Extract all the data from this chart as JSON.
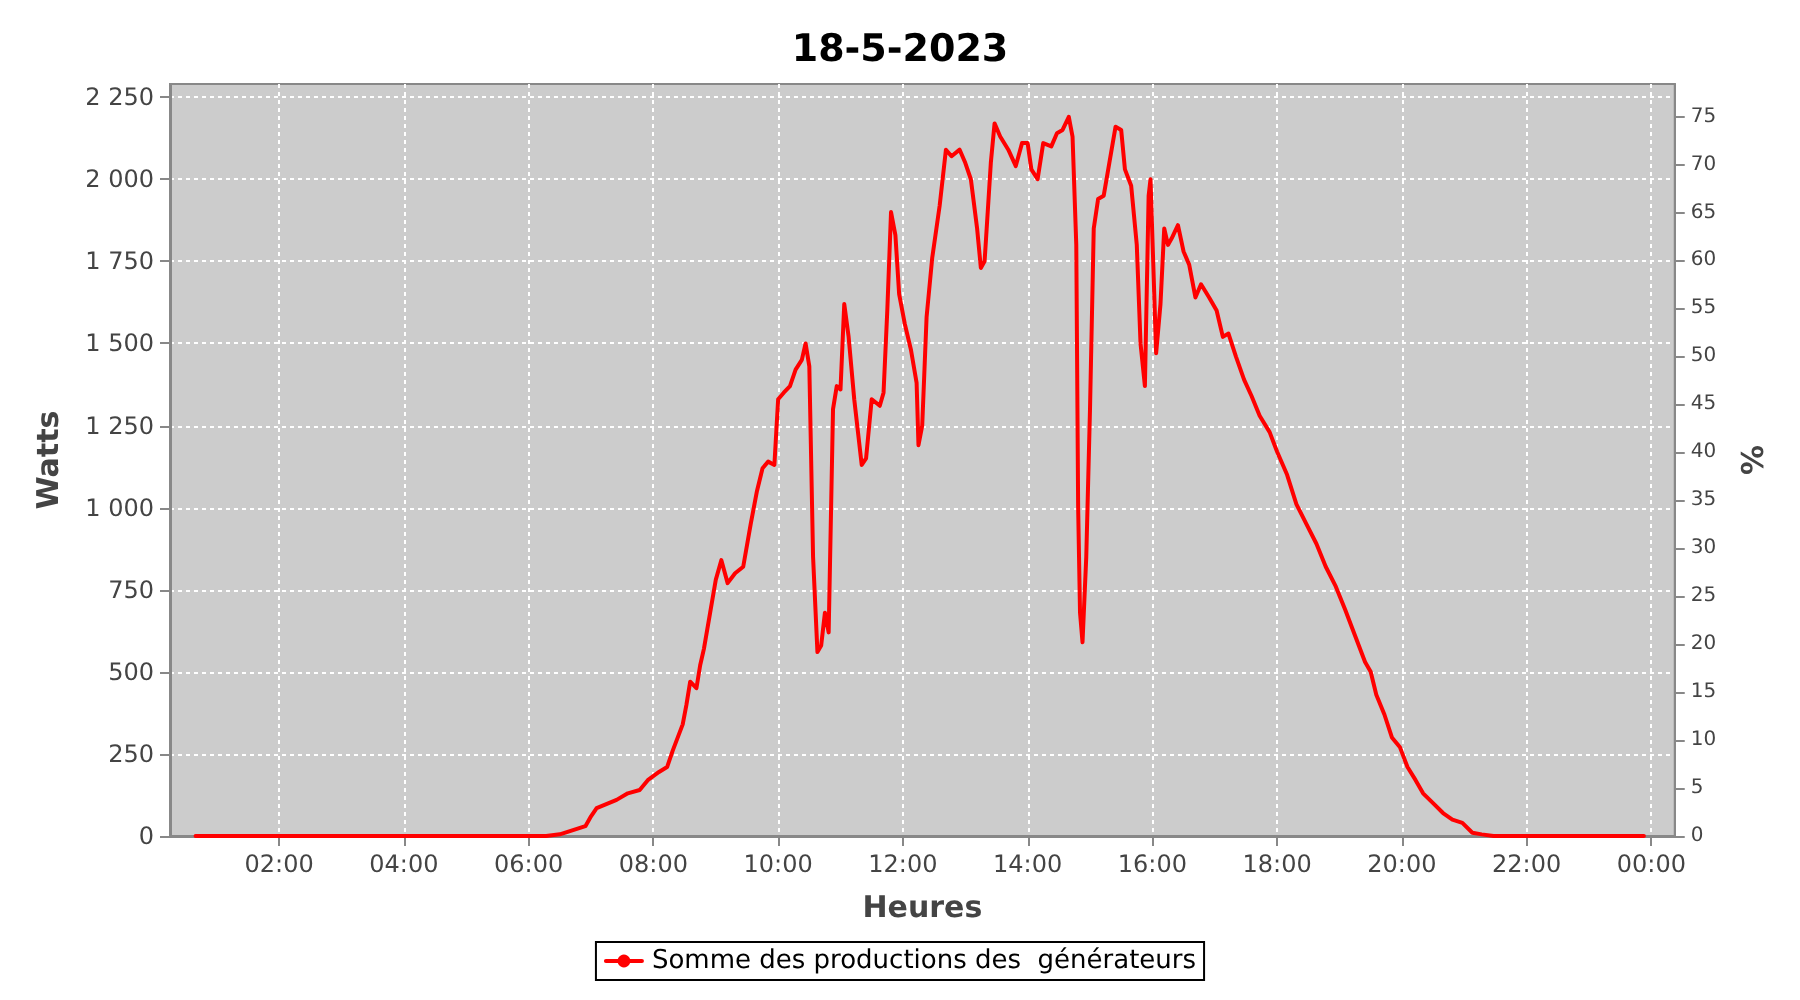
{
  "chart_data": {
    "type": "line",
    "title": "18-5-2023",
    "xlabel": "Heures",
    "ylabel": "Watts",
    "y2label": "%",
    "xlim": [
      0.25,
      24.375
    ],
    "xticks": [
      {
        "value": 2,
        "label": "02:00"
      },
      {
        "value": 4,
        "label": "04:00"
      },
      {
        "value": 6,
        "label": "06:00"
      },
      {
        "value": 8,
        "label": "08:00"
      },
      {
        "value": 10,
        "label": "10:00"
      },
      {
        "value": 12,
        "label": "12:00"
      },
      {
        "value": 14,
        "label": "14:00"
      },
      {
        "value": 16,
        "label": "16:00"
      },
      {
        "value": 18,
        "label": "18:00"
      },
      {
        "value": 20,
        "label": "20:00"
      },
      {
        "value": 22,
        "label": "22:00"
      },
      {
        "value": 24,
        "label": "00:00"
      }
    ],
    "ylim": [
      0,
      2290
    ],
    "yticks": [
      0,
      250,
      500,
      750,
      {
        "value": 1000,
        "label": "1 000"
      },
      {
        "value": 1250,
        "label": "1 250"
      },
      {
        "value": 1500,
        "label": "1 500"
      },
      {
        "value": 1750,
        "label": "1 750"
      },
      {
        "value": 2000,
        "label": "2 000"
      },
      {
        "value": 2250,
        "label": "2 250"
      }
    ],
    "y2lim": [
      0,
      78.4
    ],
    "y2ticks": [
      0,
      5,
      10,
      15,
      20,
      25,
      30,
      35,
      40,
      45,
      50,
      55,
      60,
      65,
      70,
      75
    ],
    "grid": true,
    "legend": "bottom",
    "marker": "none",
    "line_style": "solid",
    "series": [
      {
        "name": "Somme des productions des  générateurs",
        "color": "#ff0000",
        "x": [
          0.66,
          6.28,
          6.5,
          6.91,
          7.0,
          7.09,
          7.41,
          7.59,
          7.78,
          7.91,
          8.09,
          8.22,
          8.31,
          8.47,
          8.53,
          8.59,
          8.69,
          8.75,
          8.81,
          8.91,
          9.0,
          9.09,
          9.19,
          9.31,
          9.44,
          9.56,
          9.66,
          9.75,
          9.84,
          9.94,
          10.0,
          10.09,
          10.19,
          10.28,
          10.38,
          10.44,
          10.5,
          10.56,
          10.63,
          10.69,
          10.75,
          10.81,
          10.88,
          10.94,
          11.0,
          11.06,
          11.13,
          11.22,
          11.34,
          11.41,
          11.5,
          11.63,
          11.69,
          11.75,
          11.81,
          11.88,
          11.94,
          12.03,
          12.13,
          12.22,
          12.25,
          12.31,
          12.38,
          12.47,
          12.59,
          12.69,
          12.78,
          12.91,
          13.0,
          13.09,
          13.19,
          13.25,
          13.31,
          13.41,
          13.47,
          13.56,
          13.69,
          13.81,
          13.91,
          14.0,
          14.06,
          14.16,
          14.25,
          14.38,
          14.47,
          14.56,
          14.66,
          14.72,
          14.78,
          14.81,
          14.84,
          14.88,
          14.94,
          15.0,
          15.06,
          15.13,
          15.22,
          15.31,
          15.41,
          15.5,
          15.56,
          15.66,
          15.75,
          15.81,
          15.88,
          15.94,
          15.97,
          16.03,
          16.06,
          16.13,
          16.19,
          16.25,
          16.31,
          16.41,
          16.5,
          16.59,
          16.69,
          16.78,
          16.91,
          17.03,
          17.13,
          17.22,
          17.34,
          17.47,
          17.59,
          17.72,
          17.88,
          18.0,
          18.16,
          18.31,
          18.47,
          18.63,
          18.78,
          18.94,
          19.09,
          19.25,
          19.41,
          19.5,
          19.59,
          19.72,
          19.84,
          19.97,
          20.09,
          20.22,
          20.34,
          20.5,
          20.66,
          20.81,
          20.97,
          21.13,
          21.28,
          21.47,
          23.88
        ],
        "values": [
          0,
          0,
          5,
          30,
          60,
          85,
          110,
          130,
          140,
          170,
          195,
          210,
          260,
          340,
          400,
          470,
          450,
          520,
          570,
          680,
          780,
          840,
          770,
          800,
          820,
          950,
          1050,
          1120,
          1140,
          1130,
          1330,
          1350,
          1370,
          1420,
          1450,
          1500,
          1430,
          850,
          560,
          580,
          680,
          620,
          1300,
          1370,
          1360,
          1620,
          1520,
          1330,
          1130,
          1150,
          1330,
          1310,
          1350,
          1600,
          1900,
          1830,
          1650,
          1560,
          1480,
          1380,
          1190,
          1250,
          1580,
          1760,
          1920,
          2090,
          2070,
          2090,
          2050,
          2000,
          1850,
          1730,
          1750,
          2050,
          2170,
          2130,
          2090,
          2040,
          2110,
          2110,
          2030,
          2000,
          2110,
          2100,
          2140,
          2150,
          2190,
          2130,
          1800,
          1000,
          680,
          590,
          850,
          1300,
          1850,
          1940,
          1950,
          2050,
          2160,
          2150,
          2030,
          1980,
          1800,
          1500,
          1370,
          1950,
          2000,
          1650,
          1470,
          1620,
          1850,
          1800,
          1820,
          1860,
          1780,
          1740,
          1640,
          1680,
          1640,
          1600,
          1520,
          1530,
          1460,
          1390,
          1340,
          1280,
          1230,
          1170,
          1100,
          1010,
          950,
          890,
          820,
          760,
          690,
          610,
          530,
          500,
          430,
          370,
          300,
          270,
          210,
          170,
          130,
          100,
          70,
          50,
          40,
          10,
          5,
          0,
          0
        ]
      }
    ]
  }
}
